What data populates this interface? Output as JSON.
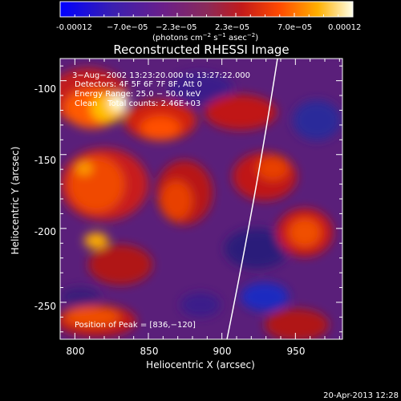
{
  "colorbar": {
    "tick_labels": [
      "-0.00012",
      "−7.0e−05",
      "−2.3e−05",
      "2.3e−05",
      "7.0e−05",
      "0.00012"
    ],
    "units_label": "(photons cm",
    "units_exp1": "−2",
    "units_mid": " s",
    "units_exp2": "−1",
    "units_tail": " asec",
    "units_exp3": "−2",
    "units_close": ")"
  },
  "plot": {
    "title": "Reconstructed RHESSI Image",
    "x_label": "Heliocentric X (arcsec)",
    "y_label": "Heliocentric Y (arcsec)",
    "x_ticks": [
      "800",
      "850",
      "900",
      "950"
    ],
    "y_ticks": [
      "-100",
      "-150",
      "-200",
      "-250"
    ],
    "x_range": [
      790,
      982
    ],
    "y_range": [
      -275,
      -85
    ]
  },
  "annotations": {
    "time_range": "3−Aug−2002 13:23:20.000 to 13:27:22.000",
    "detectors": "Detectors: 4F 5F 6F 7F 8F, Att 0",
    "energy_range": "Energy Range: 25.0 − 50.0 keV",
    "clean_counts": "Clean    Total counts: 2.46E+03",
    "peak_position": "Position of Peak = [836,−120]"
  },
  "footer": {
    "timestamp": "20-Apr-2013 12:28"
  },
  "colors": {
    "background": "#000000",
    "limb_line": "#ffffff"
  }
}
